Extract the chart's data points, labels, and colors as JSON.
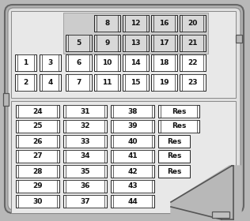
{
  "bg_color": "#b8b8b8",
  "panel_outer_fc": "#c8c8c8",
  "panel_inner_fc": "#e8e8e8",
  "fuse_fc_white": "#ffffff",
  "fuse_fc_shaded": "#d8d8d8",
  "top_rows": [
    {
      "fuses": [
        "8",
        "12",
        "16",
        "20"
      ],
      "cols": [
        3,
        4,
        5,
        6
      ]
    },
    {
      "fuses": [
        "5",
        "9",
        "13",
        "17",
        "21"
      ],
      "cols": [
        2,
        3,
        4,
        5,
        6
      ]
    },
    {
      "fuses": [
        "1",
        "3",
        "6",
        "10",
        "14",
        "18",
        "22"
      ],
      "cols": [
        0,
        1,
        2,
        3,
        4,
        5,
        6
      ]
    },
    {
      "fuses": [
        "2",
        "4",
        "7",
        "11",
        "15",
        "19",
        "23"
      ],
      "cols": [
        0,
        1,
        2,
        3,
        4,
        5,
        6
      ]
    }
  ],
  "bottom_fuses": [
    [
      "24",
      "31",
      "38"
    ],
    [
      "25",
      "32",
      "39"
    ],
    [
      "26",
      "33",
      "40"
    ],
    [
      "27",
      "34",
      "41"
    ],
    [
      "28",
      "35",
      "42"
    ],
    [
      "29",
      "36",
      "43"
    ],
    [
      "30",
      "37",
      "44"
    ]
  ],
  "res_boxes": [
    {
      "row": 0,
      "style": "wide"
    },
    {
      "row": 1,
      "style": "wide"
    },
    {
      "row": 2,
      "style": "narrow"
    },
    {
      "row": 3,
      "style": "narrow"
    },
    {
      "row": 4,
      "style": "narrow"
    }
  ]
}
